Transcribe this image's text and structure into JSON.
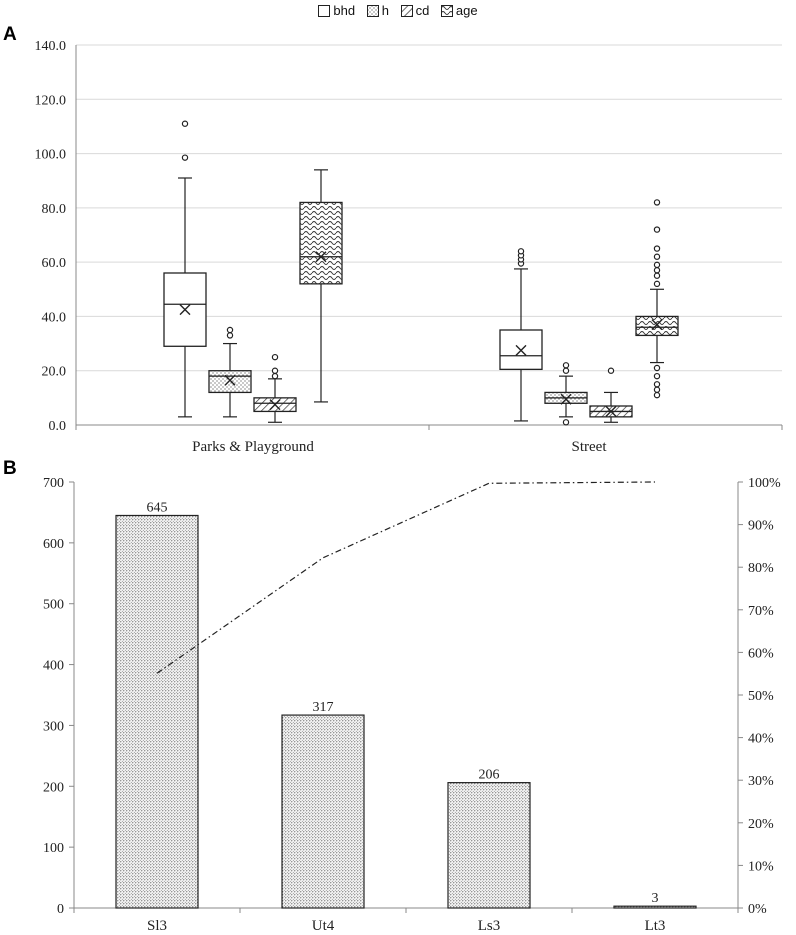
{
  "panels": {
    "a": "A",
    "b": "B"
  },
  "legend": [
    {
      "name": "bhd",
      "pattern": "plain"
    },
    {
      "name": "h",
      "pattern": "dots"
    },
    {
      "name": "cd",
      "pattern": "hatch"
    },
    {
      "name": "age",
      "pattern": "wave"
    }
  ],
  "chart_data": [
    {
      "type": "box",
      "title": "",
      "xlabel": "",
      "ylabel": "",
      "ylim": [
        0,
        140
      ],
      "yticks": [
        "0.0",
        "20.0",
        "40.0",
        "60.0",
        "80.0",
        "100.0",
        "120.0",
        "140.0"
      ],
      "grid": true,
      "categories": [
        "Parks & Playground",
        "Street"
      ],
      "series": [
        {
          "name": "bhd",
          "pattern": "plain",
          "boxes": [
            {
              "whisker_low": 3,
              "q1": 29,
              "median": 44.5,
              "q3": 56,
              "whisker_high": 91,
              "mean": 42.5,
              "outliers": [
                98.5,
                111
              ]
            },
            {
              "whisker_low": 1.5,
              "q1": 20.5,
              "median": 25.5,
              "q3": 35,
              "whisker_high": 57.5,
              "mean": 27.5,
              "outliers": [
                59.5,
                61,
                62.5,
                64
              ]
            }
          ]
        },
        {
          "name": "h",
          "pattern": "dots",
          "boxes": [
            {
              "whisker_low": 3,
              "q1": 12,
              "median": 18,
              "q3": 20,
              "whisker_high": 30,
              "mean": 16.5,
              "outliers": [
                33,
                35
              ]
            },
            {
              "whisker_low": 3,
              "q1": 8,
              "median": 10,
              "q3": 12,
              "whisker_high": 18,
              "mean": 9.5,
              "outliers": [
                1,
                20,
                22
              ]
            }
          ]
        },
        {
          "name": "cd",
          "pattern": "hatch",
          "boxes": [
            {
              "whisker_low": 1,
              "q1": 5,
              "median": 8,
              "q3": 10,
              "whisker_high": 17,
              "mean": 7.5,
              "outliers": [
                18,
                20,
                25
              ]
            },
            {
              "whisker_low": 1,
              "q1": 3,
              "median": 5,
              "q3": 7,
              "whisker_high": 12,
              "mean": 5,
              "outliers": [
                20
              ]
            }
          ]
        },
        {
          "name": "age",
          "pattern": "wave",
          "boxes": [
            {
              "whisker_low": 8.5,
              "q1": 52,
              "median": 62,
              "q3": 82,
              "whisker_high": 94,
              "mean": 62,
              "outliers": []
            },
            {
              "whisker_low": 23,
              "q1": 33,
              "median": 36,
              "q3": 40,
              "whisker_high": 50,
              "mean": 37,
              "outliers": [
                11,
                13,
                15,
                18,
                21,
                52,
                55,
                57,
                59,
                62,
                65,
                72,
                82
              ]
            }
          ]
        }
      ]
    },
    {
      "type": "bar",
      "title": "",
      "xlabel": "",
      "ylabel": "",
      "categories": [
        "Sl3",
        "Ut4",
        "Ls3",
        "Lt3"
      ],
      "values": [
        645,
        317,
        206,
        3
      ],
      "data_labels": [
        "645",
        "317",
        "206",
        "3"
      ],
      "ylim": [
        0,
        700
      ],
      "yticks": [
        "0",
        "100",
        "200",
        "300",
        "400",
        "500",
        "600",
        "700"
      ],
      "secondary": {
        "type": "line",
        "name": "cumulative %",
        "values": [
          55.1,
          82.2,
          99.7,
          100
        ],
        "ylim": [
          0,
          100
        ],
        "yticks": [
          "0%",
          "10%",
          "20%",
          "30%",
          "40%",
          "50%",
          "60%",
          "70%",
          "80%",
          "90%",
          "100%"
        ]
      },
      "grid": false
    }
  ],
  "colors": {
    "grid": "#d9d9d9",
    "axis": "#888888",
    "stroke": "#222222",
    "bg": "#ffffff"
  }
}
